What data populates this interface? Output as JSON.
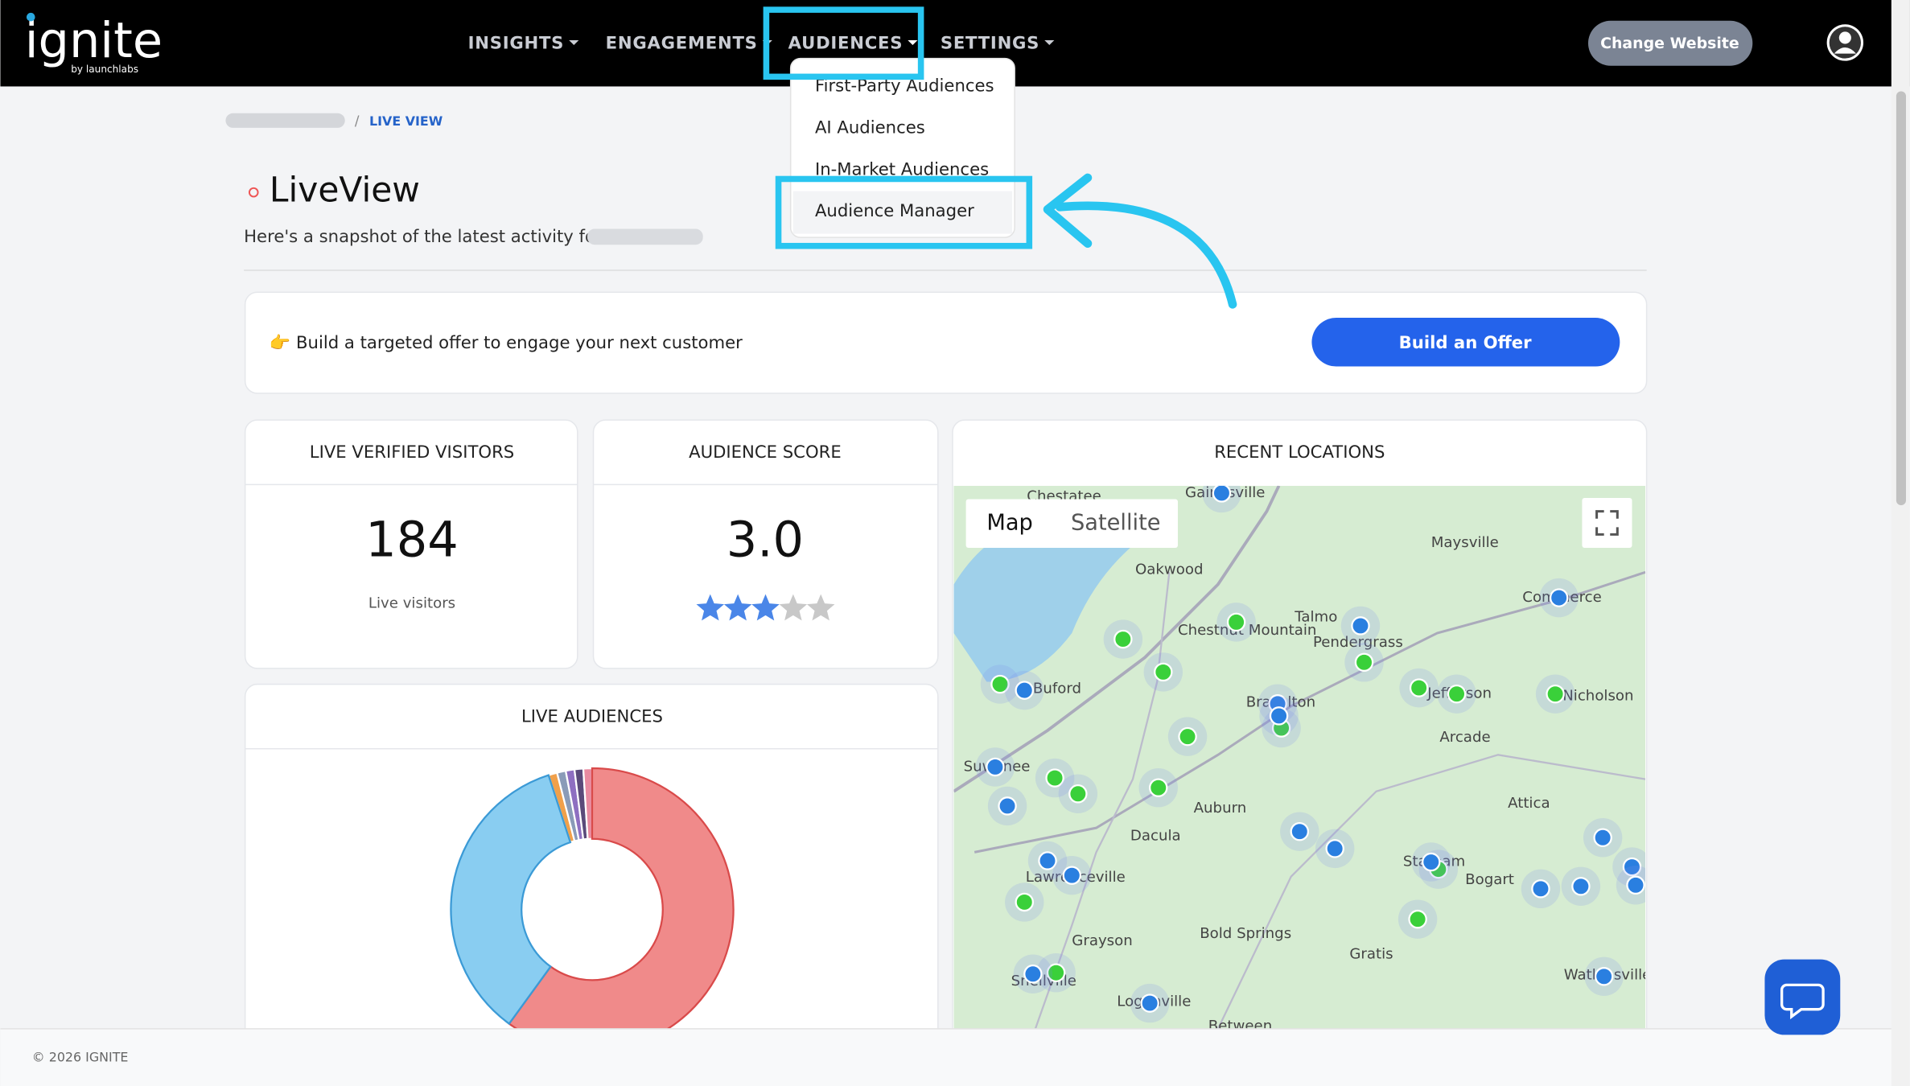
{
  "header": {
    "logo": "ignite",
    "logo_sub": "by launchlabs",
    "nav": [
      "INSIGHTS",
      "ENGAGEMENTS",
      "AUDIENCES",
      "SETTINGS"
    ],
    "button": "Change Website"
  },
  "dropdown": [
    "First-Party Audiences",
    "AI Audiences",
    "In-Market Audiences",
    "Audience Manager"
  ],
  "breadcrumb": "LIVE VIEW",
  "page": {
    "title": "LiveView",
    "subtitle": "Here's a snapshot of the latest activity for"
  },
  "banner": {
    "text": "👉 Build a targeted offer to engage your next customer",
    "button": "Build an Offer"
  },
  "cards": {
    "visitors": {
      "title": "LIVE VERIFIED VISITORS",
      "value": 184,
      "caption": "Live visitors"
    },
    "score": {
      "title": "AUDIENCE SCORE",
      "value": "3.0",
      "rating": 3,
      "rating_max": 5
    }
  },
  "map": {
    "title": "RECENT LOCATIONS",
    "tabs": [
      "Map",
      "Satellite"
    ],
    "places": [
      "Chestatee",
      "Gainesville",
      "Maysville",
      "Oakwood",
      "Chestnut Mountain",
      "Talmo",
      "Pendergrass",
      "Commerce",
      "Buford",
      "Braselton",
      "Jefferson",
      "Nicholson",
      "Arcade",
      "Suwanee",
      "Auburn",
      "Attica",
      "Dacula",
      "Lawrenceville",
      "Statham",
      "Bogart",
      "Grayson",
      "Bold Springs",
      "Gratis",
      "Snellville",
      "Loganville",
      "Watkinsville",
      "Between"
    ]
  },
  "chart_data": {
    "type": "pie",
    "title": "LIVE AUDIENCES",
    "values": [
      1,
      1,
      1,
      1,
      1,
      60,
      35
    ],
    "colors": [
      "#f0a04b",
      "#8a9bb8",
      "#8e6fc1",
      "#5a4a7a",
      "#e88aa0",
      "#f08a8a",
      "#89cdf1"
    ],
    "donut": true
  },
  "footer": "© 2026 IGNITE"
}
